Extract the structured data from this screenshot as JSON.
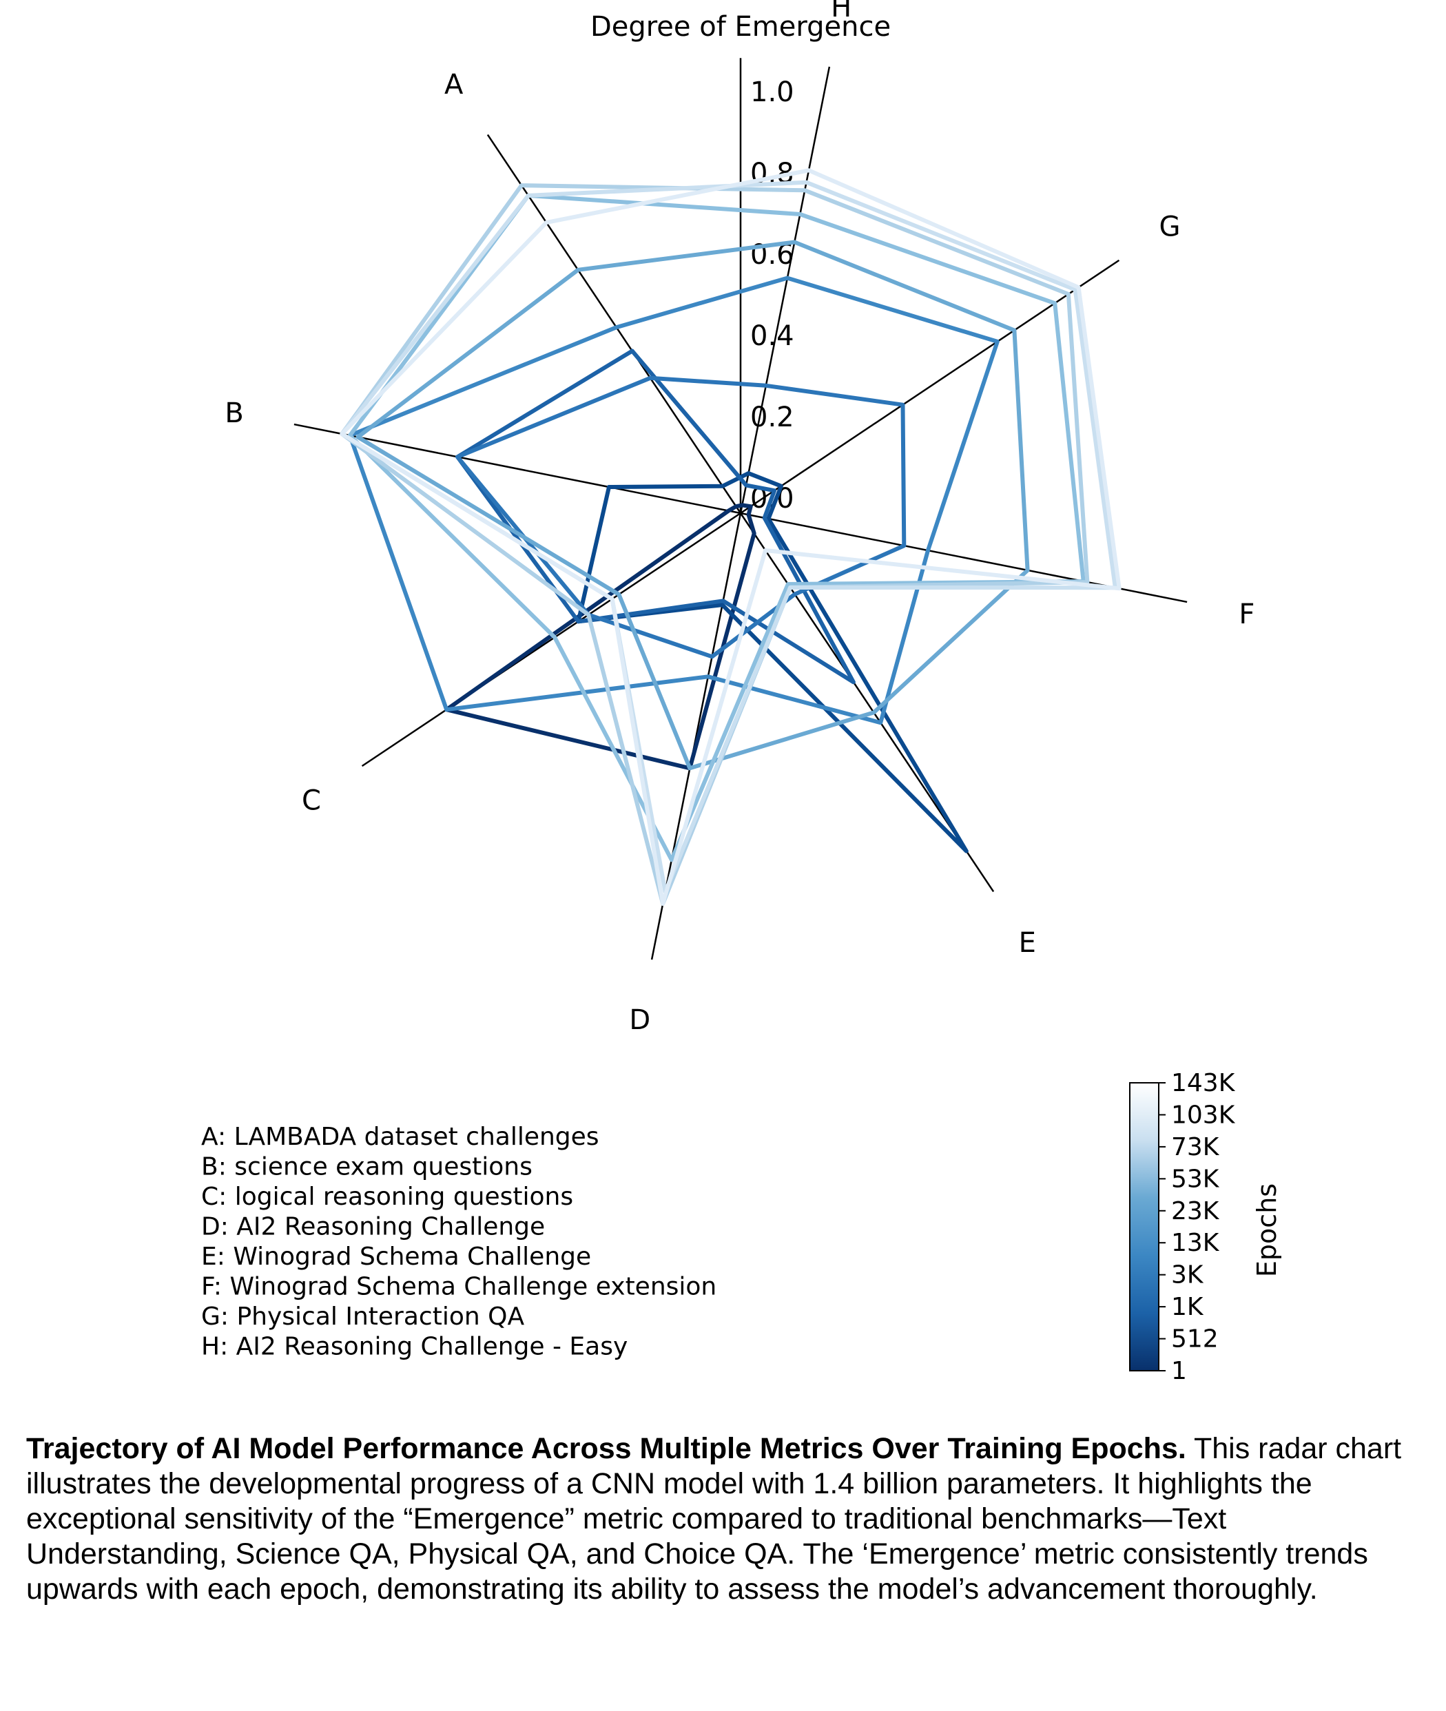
{
  "chart_data": {
    "type": "radar",
    "title": "Degree of Emergence",
    "axes": [
      "A",
      "B",
      "C",
      "D",
      "E",
      "F",
      "G",
      "H"
    ],
    "axis_descriptions": [
      "A: LAMBADA dataset challenges",
      "B: science exam questions",
      "C: logical reasoning questions",
      "D: AI2 Reasoning Challenge",
      "E: Winograd Schema Challenge",
      "F: Winograd Schema Challenge extension",
      "G: Physical Interaction QA",
      "H: AI2 Reasoning Challenge - Easy"
    ],
    "radial_ticks": [
      "0.0",
      "0.2",
      "0.4",
      "0.6",
      "0.8",
      "1.0"
    ],
    "rlim": [
      0,
      1.0
    ],
    "colorbar": {
      "label": "Epochs",
      "ticks": [
        "1",
        "512",
        "1K",
        "3K",
        "13K",
        "23K",
        "53K",
        "73K",
        "103K",
        "143K"
      ],
      "colormap": "Blues"
    },
    "series": [
      {
        "epoch": "1",
        "color": "#08306b",
        "values": [
          0.02,
          0.03,
          0.87,
          0.64,
          0.06,
          0.02,
          0.03,
          0.02
        ]
      },
      {
        "epoch": "512",
        "color": "#0a4a8f",
        "values": [
          0.08,
          0.33,
          0.48,
          0.23,
          1.0,
          0.07,
          0.12,
          0.1
        ]
      },
      {
        "epoch": "1K",
        "color": "#1c62a8",
        "values": [
          0.48,
          0.71,
          0.48,
          0.22,
          0.5,
          0.06,
          0.1,
          0.07
        ]
      },
      {
        "epoch": "3K",
        "color": "#2b75b8",
        "values": [
          0.4,
          0.71,
          0.45,
          0.36,
          0.24,
          0.41,
          0.48,
          0.32
        ]
      },
      {
        "epoch": "13K",
        "color": "#3c87c3",
        "values": [
          0.55,
          0.98,
          0.87,
          0.41,
          0.62,
          0.47,
          0.76,
          0.59
        ]
      },
      {
        "epoch": "23K",
        "color": "#6aa9d3",
        "values": [
          0.72,
          0.96,
          0.36,
          0.64,
          0.59,
          0.72,
          0.81,
          0.68
        ]
      },
      {
        "epoch": "53K",
        "color": "#8cbfdf",
        "values": [
          0.94,
          0.98,
          0.55,
          0.87,
          0.21,
          0.86,
          0.93,
          0.75
        ]
      },
      {
        "epoch": "73K",
        "color": "#aed0e7",
        "values": [
          0.97,
          1.0,
          0.45,
          0.98,
          0.22,
          0.87,
          0.97,
          0.81
        ]
      },
      {
        "epoch": "103K",
        "color": "#c9dff0",
        "values": [
          0.94,
          1.0,
          0.38,
          0.95,
          0.22,
          0.94,
          0.99,
          0.83
        ]
      },
      {
        "epoch": "143K",
        "color": "#deebf7",
        "values": [
          0.86,
          1.0,
          0.38,
          0.98,
          0.11,
          0.95,
          1.0,
          0.86
        ]
      }
    ]
  },
  "caption": {
    "title": "Trajectory of AI Model Performance Across Multiple Metrics Over Training Epochs.",
    "body": "This radar chart illustrates the developmental progress of a CNN model with 1.4 billion parameters. It highlights the exceptional sensitivity of the “Emergence” metric compared to traditional benchmarks—Text Understanding, Science QA, Physical QA, and Choice QA. The ‘Emergence’ metric consistently trends upwards with each epoch, demonstrating its ability to assess the model’s advancement thoroughly."
  }
}
